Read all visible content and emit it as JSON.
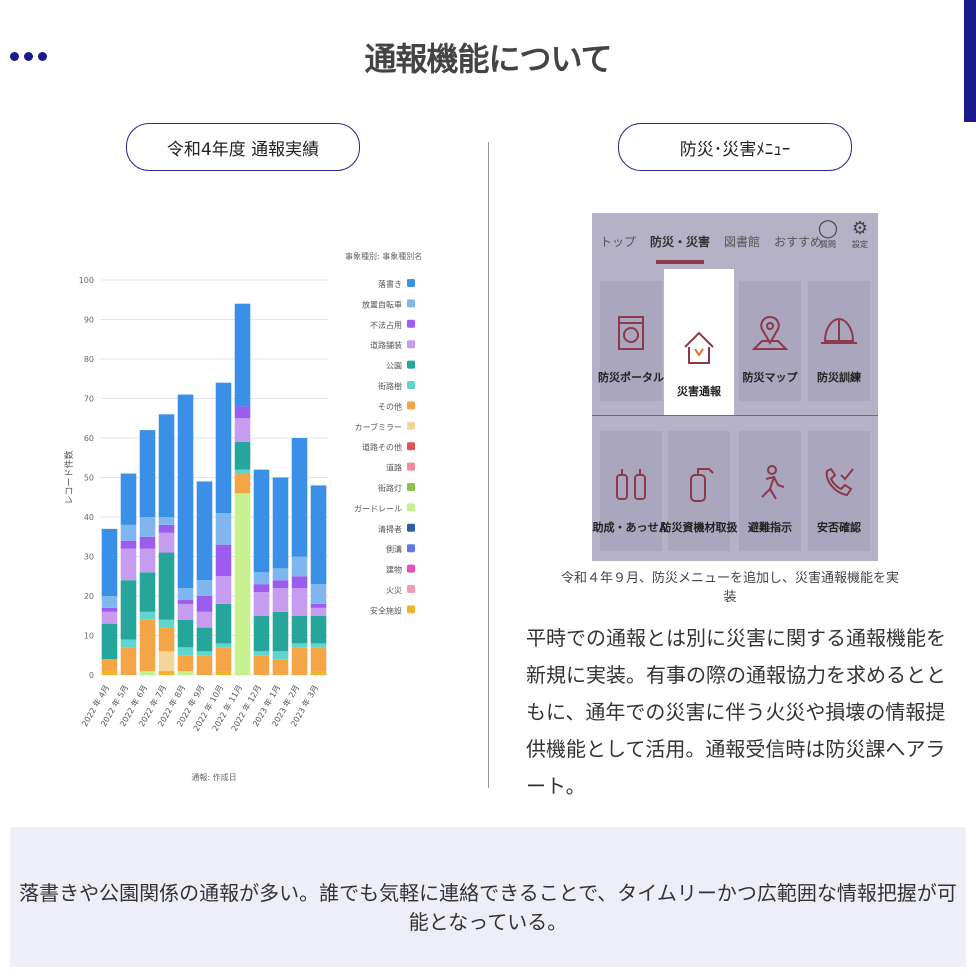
{
  "page": {
    "title": "通報機能について",
    "left_pill": "令和4年度 通報実績",
    "right_pill": "防災･災害ﾒﾆｭｰ",
    "caption": "令和４年９月、防災メニューを追加し、災害通報機能を実装",
    "paragraph": "平時での通報とは別に災害に関する通報機能を新規に実装。有事の際の通報協力を求めるとともに、通年での災害に伴う火災や損壊の情報提供機能として活用。通報受信時は防災課へアラート。",
    "bottom_text": "落書きや公園関係の通報が多い。誰でも気軽に連絡できることで、タイムリーかつ広範囲な情報把握が可能となっている。"
  },
  "menu": {
    "tabs": [
      "トップ",
      "防災・災害",
      "図書館",
      "おすすめ"
    ],
    "active_tab": "防災・災害",
    "icons": [
      {
        "name": "question-icon",
        "label": "質問"
      },
      {
        "name": "gear-icon",
        "label": "設定"
      }
    ],
    "tiles": [
      {
        "label": "防災ポータル",
        "icon": "portal-icon",
        "selected": false
      },
      {
        "label": "災害通報",
        "icon": "house-damage-icon",
        "selected": true
      },
      {
        "label": "防災マップ",
        "icon": "map-pin-icon",
        "selected": false
      },
      {
        "label": "防災訓練",
        "icon": "helmet-icon",
        "selected": false
      },
      {
        "label": "助成・あっせん",
        "icon": "extinguishers-icon",
        "selected": false
      },
      {
        "label": "防災資機材取扱",
        "icon": "fire-extinguisher-icon",
        "selected": false
      },
      {
        "label": "避難指示",
        "icon": "evacuation-icon",
        "selected": false
      },
      {
        "label": "安否確認",
        "icon": "phone-check-icon",
        "selected": false
      }
    ],
    "accent_color": "#8c3a4a"
  },
  "chart_data": {
    "type": "bar",
    "stacked": true,
    "ylabel": "レコード件数",
    "xlabel": "通報: 作成日",
    "legend_title": "事象種別: 事象種別名",
    "legend_position": "right",
    "grid": true,
    "ylim": [
      0,
      100
    ],
    "yticks": [
      0,
      10,
      20,
      30,
      40,
      50,
      60,
      70,
      80,
      90,
      100
    ],
    "categories": [
      "2022 年 4月",
      "2022 年 5月",
      "2022 年 6月",
      "2022 年 7月",
      "2022 年 8月",
      "2022 年 9月",
      "2022 年 10月",
      "2022 年 11月",
      "2022 年 12月",
      "2023 年 1月",
      "2023 年 2月",
      "2023 年 3月"
    ],
    "series": [
      {
        "name": "安全施設",
        "color": "#f0b429",
        "values": [
          1,
          0,
          0,
          1,
          0,
          0,
          1,
          0,
          0,
          0,
          0,
          1
        ]
      },
      {
        "name": "火災",
        "color": "#f49ac1",
        "values": [
          0,
          0,
          0,
          0,
          0,
          0,
          0,
          0,
          0,
          0,
          0,
          0
        ]
      },
      {
        "name": "建物",
        "color": "#e94dbb",
        "values": [
          0,
          0,
          0,
          0,
          0,
          0,
          0,
          0,
          0,
          0,
          0,
          0
        ]
      },
      {
        "name": "側溝",
        "color": "#5b7be0",
        "values": [
          0,
          0,
          0,
          0,
          0,
          0,
          0,
          0,
          0,
          0,
          0,
          0
        ]
      },
      {
        "name": "清掃者",
        "color": "#2d5fa8",
        "values": [
          0,
          0,
          0,
          0,
          0,
          0,
          0,
          0,
          0,
          0,
          0,
          0
        ]
      },
      {
        "name": "ガードレール",
        "color": "#c7f08e",
        "values": [
          0,
          0,
          1,
          0,
          1,
          0,
          0,
          46,
          0,
          0,
          0,
          0
        ]
      },
      {
        "name": "街路灯",
        "color": "#8bc34a",
        "values": [
          0,
          0,
          0,
          0,
          0,
          0,
          0,
          0,
          0,
          0,
          0,
          0
        ]
      },
      {
        "name": "道路",
        "color": "#f08c9a",
        "values": [
          0,
          0,
          0,
          0,
          0,
          0,
          0,
          0,
          0,
          0,
          0,
          0
        ]
      },
      {
        "name": "道路その他",
        "color": "#e0535b",
        "values": [
          0,
          0,
          0,
          0,
          0,
          0,
          0,
          0,
          0,
          0,
          0,
          0
        ]
      },
      {
        "name": "カーブミラー",
        "color": "#f6d49a",
        "values": [
          0,
          0,
          0,
          5,
          0,
          0,
          0,
          0,
          0,
          0,
          0,
          0
        ]
      },
      {
        "name": "その他",
        "color": "#f4a646",
        "values": [
          3,
          7,
          13,
          6,
          4,
          5,
          6,
          5,
          5,
          4,
          7,
          6
        ]
      },
      {
        "name": "街路樹",
        "color": "#5ed6cf",
        "values": [
          0,
          2,
          2,
          2,
          2,
          1,
          1,
          1,
          1,
          2,
          1,
          1
        ]
      },
      {
        "name": "公園",
        "color": "#26a69a",
        "values": [
          9,
          15,
          10,
          17,
          7,
          6,
          10,
          7,
          9,
          10,
          7,
          7
        ]
      },
      {
        "name": "道路舗装",
        "color": "#c69cf0",
        "values": [
          3,
          8,
          6,
          5,
          4,
          4,
          7,
          6,
          6,
          6,
          7,
          2
        ]
      },
      {
        "name": "不法占用",
        "color": "#9c5cf0",
        "values": [
          1,
          2,
          3,
          2,
          1,
          4,
          8,
          3,
          2,
          2,
          3,
          1
        ]
      },
      {
        "name": "放置自転車",
        "color": "#7fb6f0",
        "values": [
          3,
          4,
          5,
          2,
          3,
          4,
          8,
          0,
          3,
          3,
          5,
          5
        ]
      },
      {
        "name": "落書き",
        "color": "#3a90e6",
        "values": [
          17,
          13,
          22,
          26,
          49,
          25,
          33,
          26,
          26,
          23,
          30,
          25
        ]
      }
    ],
    "legend_order": [
      "落書き",
      "放置自転車",
      "不法占用",
      "道路舗装",
      "公園",
      "街路樹",
      "その他",
      "カーブミラー",
      "道路その他",
      "道路",
      "街路灯",
      "ガードレール",
      "清掃者",
      "側溝",
      "建物",
      "火災",
      "安全施設"
    ]
  }
}
